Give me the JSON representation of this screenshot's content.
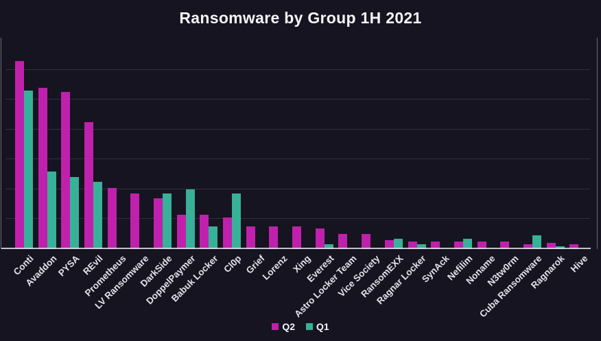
{
  "chart_data": {
    "type": "bar",
    "title": "Ransomware by Group 1H 2021",
    "xlabel": "",
    "ylabel": "",
    "categories": [
      "Conti",
      "Avaddon",
      "PYSA",
      "REvil",
      "Prometheus",
      "LV Ransomware",
      "DarkSide",
      "DoppelPaymer",
      "Babuk Locker",
      "Cl0p",
      "Grief",
      "Lorenz",
      "Xing",
      "Everest",
      "Astro Locker Team",
      "Vice Society",
      "RansomEXX",
      "Ragnar Locker",
      "SynAck",
      "Nefilim",
      "Noname",
      "N3tw0rm",
      "Cuba Ransomware",
      "Ragnarok",
      "Hive"
    ],
    "series": [
      {
        "name": "Q2",
        "color": "#c021ac",
        "values": [
          126,
          108,
          105,
          85,
          41,
          37,
          34,
          23,
          23,
          21,
          15,
          15,
          15,
          14,
          10,
          10,
          6,
          5,
          5,
          5,
          5,
          5,
          3,
          4,
          3
        ]
      },
      {
        "name": "Q1",
        "color": "#37b198",
        "values": [
          106,
          52,
          48,
          45,
          0,
          0,
          37,
          40,
          15,
          37,
          0,
          0,
          0,
          3,
          0,
          0,
          7,
          3,
          0,
          7,
          0,
          0,
          9,
          2,
          0
        ]
      }
    ],
    "ylim": [
      0,
      140
    ],
    "gridline_step": 20,
    "grid_max": 120,
    "grid": true,
    "y_tick_labels_visible": false,
    "legend_position": "bottom"
  },
  "colors": {
    "background": "#161420",
    "bar_q2": "#c021ac",
    "bar_q1": "#37b198",
    "axis_line": "#e2e2ea",
    "gridline": "#36343f",
    "label_text": "#e2e2e8",
    "title_text": "#f5f5f7"
  }
}
